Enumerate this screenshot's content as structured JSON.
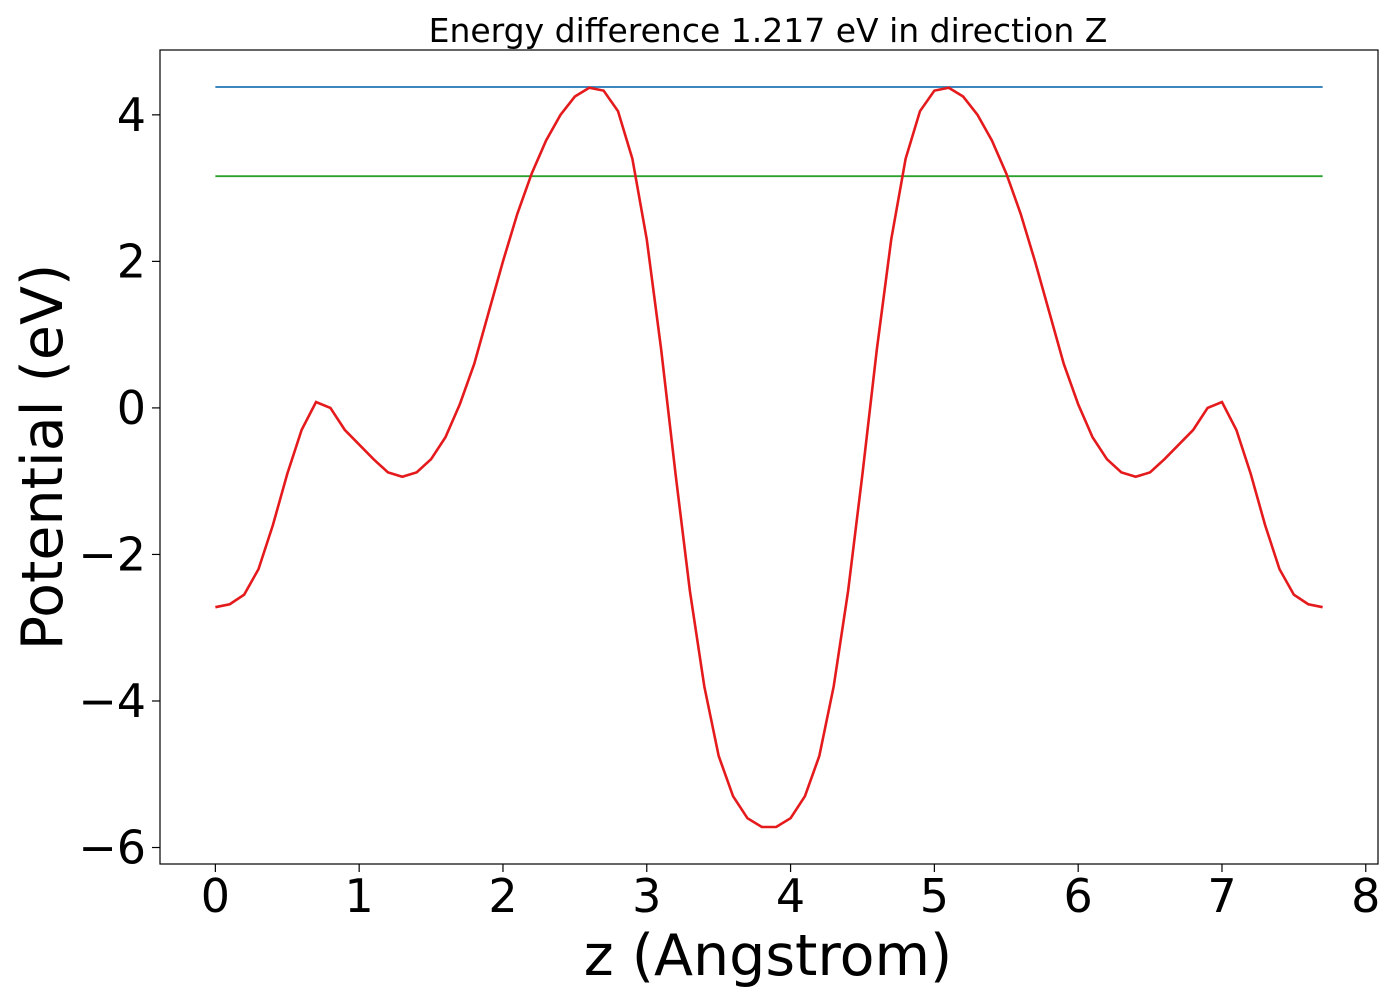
{
  "chart_data": {
    "type": "line",
    "title": "Energy difference 1.217 eV in direction Z",
    "xlabel": "z (Angstrom)",
    "ylabel": "Potential (eV)",
    "series": [
      {
        "color": "#1f77b4",
        "x": [
          0,
          7.7
        ],
        "values": [
          4.38,
          4.38
        ]
      },
      {
        "color": "#2ca02c",
        "x": [
          0,
          7.7
        ],
        "values": [
          3.163,
          3.163
        ]
      },
      {
        "color": "#e41a1c",
        "x": [
          0,
          0.1,
          0.2,
          0.3,
          0.4,
          0.5,
          0.6,
          0.7,
          0.8,
          0.9,
          1.0,
          1.1,
          1.2,
          1.3,
          1.4,
          1.5,
          1.6,
          1.7,
          1.8,
          1.9,
          2.0,
          2.1,
          2.2,
          2.3,
          2.4,
          2.5,
          2.6,
          2.7,
          2.8,
          2.9,
          3.0,
          3.1,
          3.2,
          3.3,
          3.4,
          3.5,
          3.6,
          3.7,
          3.8,
          3.9,
          4.0,
          4.1,
          4.2,
          4.3,
          4.4,
          4.5,
          4.6,
          4.7,
          4.8,
          4.9,
          5.0,
          5.1,
          5.2,
          5.3,
          5.4,
          5.5,
          5.6,
          5.7,
          5.8,
          5.9,
          6.0,
          6.1,
          6.2,
          6.3,
          6.4,
          6.5,
          6.6,
          6.7,
          6.8,
          6.9,
          7.0,
          7.1,
          7.2,
          7.3,
          7.4,
          7.5,
          7.6,
          7.7
        ],
        "values": [
          -2.72,
          -2.68,
          -2.55,
          -2.2,
          -1.6,
          -0.9,
          -0.3,
          0.08,
          0.0,
          -0.3,
          -0.5,
          -0.7,
          -0.88,
          -0.94,
          -0.88,
          -0.7,
          -0.4,
          0.05,
          0.6,
          1.3,
          2.0,
          2.65,
          3.2,
          3.65,
          4.0,
          4.25,
          4.37,
          4.33,
          4.05,
          3.4,
          2.3,
          0.8,
          -0.9,
          -2.5,
          -3.8,
          -4.75,
          -5.3,
          -5.6,
          -5.72,
          -5.72,
          -5.6,
          -5.3,
          -4.75,
          -3.8,
          -2.5,
          -0.9,
          0.8,
          2.3,
          3.4,
          4.05,
          4.33,
          4.37,
          4.25,
          4.0,
          3.65,
          3.2,
          2.65,
          2.0,
          1.3,
          0.6,
          0.05,
          -0.4,
          -0.7,
          -0.88,
          -0.94,
          -0.88,
          -0.7,
          -0.5,
          -0.3,
          0.0,
          0.08,
          -0.3,
          -0.9,
          -1.6,
          -2.2,
          -2.55,
          -2.68,
          -2.72
        ]
      }
    ],
    "xlim": [
      -0.385,
      8.085
    ],
    "xticks": [
      0,
      1,
      2,
      3,
      4,
      5,
      6,
      7,
      8
    ],
    "ylim": [
      -6.225,
      4.885
    ],
    "yticks": [
      {
        "value": -6,
        "label": "−6"
      },
      {
        "value": -4,
        "label": "−4"
      },
      {
        "value": -2,
        "label": "−2"
      },
      0,
      2,
      4
    ]
  }
}
